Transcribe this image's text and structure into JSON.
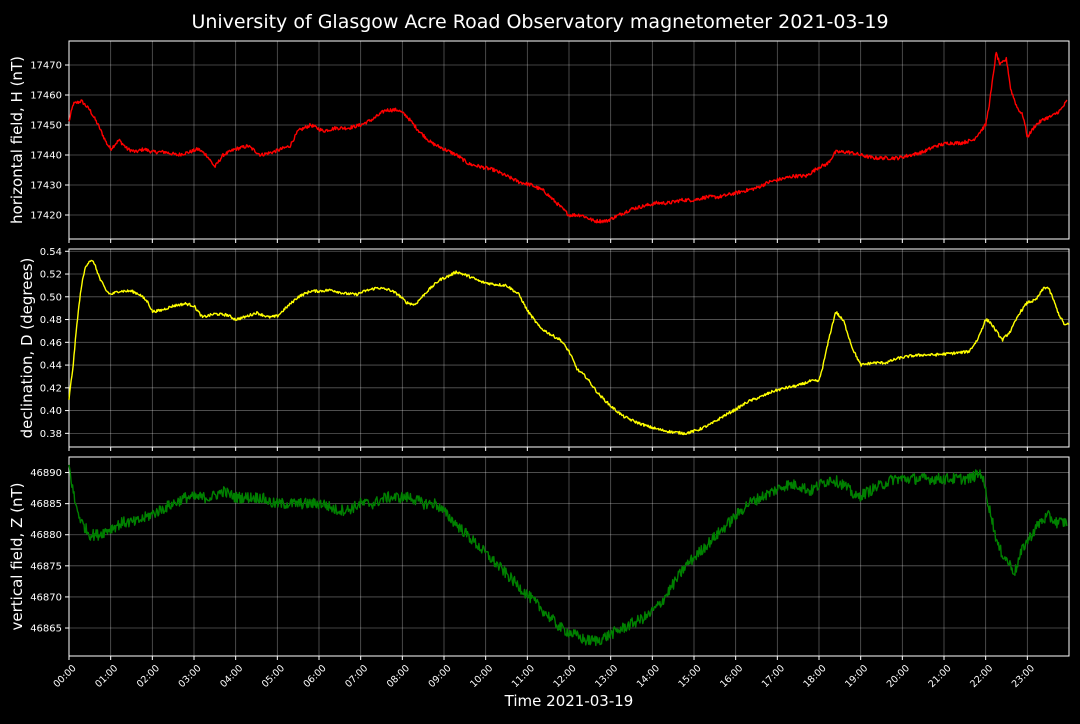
{
  "figure": {
    "title": "University of Glasgow Acre Road Observatory magnetometer 2021-03-19",
    "xlabel": "Time 2021-03-19"
  },
  "chart_data": [
    {
      "type": "line",
      "ylabel": "horizontal field, H (nT)",
      "color": "#ff0000",
      "xlim": [
        0,
        24
      ],
      "ylim": [
        17412,
        17478
      ],
      "yticks": [
        17420,
        17430,
        17440,
        17450,
        17460,
        17470
      ],
      "xticks": [
        "00:00",
        "01:00",
        "02:00",
        "03:00",
        "04:00",
        "05:00",
        "06:00",
        "07:00",
        "08:00",
        "09:00",
        "10:00",
        "11:00",
        "12:00",
        "13:00",
        "14:00",
        "15:00",
        "16:00",
        "17:00",
        "18:00",
        "19:00",
        "20:00",
        "21:00",
        "22:00",
        "23:00"
      ],
      "grid": true,
      "noise": 0.6,
      "series": [
        {
          "x": [
            0,
            0.1,
            0.3,
            0.5,
            0.7,
            0.9,
            1.0,
            1.2,
            1.4,
            1.6,
            1.8,
            2.0,
            2.3,
            2.6,
            2.9,
            3.1,
            3.3,
            3.5,
            3.7,
            4.0,
            4.3,
            4.6,
            4.9,
            5.1,
            5.3,
            5.5,
            5.8,
            6.1,
            6.4,
            6.7,
            7.0,
            7.3,
            7.6,
            7.9,
            8.1,
            8.4,
            8.7,
            9.0,
            9.3,
            9.6,
            9.9,
            10.2,
            10.5,
            10.8,
            11.1,
            11.4,
            11.7,
            12.0,
            12.3,
            12.6,
            12.9,
            13.2,
            13.5,
            13.8,
            14.1,
            14.4,
            14.7,
            15.0,
            15.3,
            15.6,
            15.9,
            16.2,
            16.5,
            16.8,
            17.1,
            17.4,
            17.7,
            18.0,
            18.2,
            18.4,
            18.7,
            19.0,
            19.3,
            19.6,
            19.9,
            20.2,
            20.5,
            20.8,
            21.1,
            21.4,
            21.7,
            22.0,
            22.1,
            22.25,
            22.35,
            22.5,
            22.6,
            22.75,
            22.9,
            23.0,
            23.2,
            23.4,
            23.6,
            23.8,
            23.95
          ],
          "y": [
            17451,
            17457,
            17458,
            17455,
            17450,
            17444,
            17442,
            17445,
            17442,
            17441,
            17442,
            17441,
            17441,
            17440,
            17441,
            17442,
            17440,
            17436,
            17440,
            17442,
            17443,
            17440,
            17441,
            17442,
            17443,
            17448,
            17450,
            17448,
            17449,
            17449,
            17450,
            17452,
            17455,
            17455,
            17453,
            17448,
            17444,
            17442,
            17440,
            17437,
            17436,
            17435,
            17433,
            17431,
            17430,
            17428,
            17424,
            17420,
            17420,
            17418,
            17418,
            17420,
            17422,
            17423,
            17424,
            17424,
            17425,
            17425,
            17426,
            17426,
            17427,
            17428,
            17429,
            17431,
            17432,
            17433,
            17433,
            17436,
            17437,
            17441,
            17441,
            17440,
            17439,
            17439,
            17439,
            17440,
            17441,
            17443,
            17444,
            17444,
            17445,
            17450,
            17458,
            17474,
            17470,
            17472,
            17462,
            17456,
            17453,
            17446,
            17450,
            17452,
            17453,
            17455,
            17458
          ]
        }
      ]
    },
    {
      "type": "line",
      "ylabel": "declination, D (degrees)",
      "color": "#ffff00",
      "xlim": [
        0,
        24
      ],
      "ylim": [
        0.368,
        0.542
      ],
      "yticks": [
        0.38,
        0.4,
        0.42,
        0.44,
        0.46,
        0.48,
        0.5,
        0.52,
        0.54
      ],
      "xticks": [
        "00:00",
        "01:00",
        "02:00",
        "03:00",
        "04:00",
        "05:00",
        "06:00",
        "07:00",
        "08:00",
        "09:00",
        "10:00",
        "11:00",
        "12:00",
        "13:00",
        "14:00",
        "15:00",
        "16:00",
        "17:00",
        "18:00",
        "19:00",
        "20:00",
        "21:00",
        "22:00",
        "23:00"
      ],
      "grid": true,
      "noise": 0.0012,
      "series": [
        {
          "x": [
            0,
            0.1,
            0.2,
            0.3,
            0.4,
            0.5,
            0.6,
            0.75,
            0.9,
            1.0,
            1.2,
            1.5,
            1.7,
            1.9,
            2.0,
            2.2,
            2.5,
            2.8,
            3.0,
            3.2,
            3.5,
            3.8,
            4.0,
            4.2,
            4.5,
            4.8,
            5.0,
            5.2,
            5.5,
            5.8,
            6.0,
            6.3,
            6.6,
            6.9,
            7.1,
            7.4,
            7.7,
            7.9,
            8.1,
            8.3,
            8.6,
            8.9,
            9.1,
            9.3,
            9.6,
            9.9,
            10.2,
            10.5,
            10.8,
            11.0,
            11.3,
            11.6,
            11.8,
            12.0,
            12.2,
            12.4,
            12.7,
            13.0,
            13.3,
            13.6,
            13.9,
            14.2,
            14.5,
            14.8,
            15.1,
            15.4,
            15.7,
            16.0,
            16.3,
            16.6,
            16.9,
            17.2,
            17.5,
            17.8,
            18.0,
            18.1,
            18.25,
            18.4,
            18.6,
            18.8,
            19.0,
            19.3,
            19.6,
            19.9,
            20.2,
            20.5,
            20.8,
            21.1,
            21.4,
            21.6,
            21.8,
            22.0,
            22.1,
            22.25,
            22.4,
            22.6,
            22.8,
            23.0,
            23.2,
            23.4,
            23.5,
            23.6,
            23.75,
            23.9,
            24.0
          ],
          "y": [
            0.41,
            0.44,
            0.48,
            0.51,
            0.527,
            0.532,
            0.53,
            0.515,
            0.505,
            0.502,
            0.505,
            0.505,
            0.502,
            0.495,
            0.487,
            0.488,
            0.492,
            0.494,
            0.492,
            0.482,
            0.485,
            0.484,
            0.48,
            0.482,
            0.486,
            0.482,
            0.483,
            0.49,
            0.5,
            0.505,
            0.505,
            0.506,
            0.503,
            0.502,
            0.505,
            0.508,
            0.506,
            0.502,
            0.495,
            0.493,
            0.505,
            0.515,
            0.518,
            0.522,
            0.518,
            0.513,
            0.511,
            0.51,
            0.502,
            0.488,
            0.473,
            0.466,
            0.462,
            0.452,
            0.436,
            0.43,
            0.415,
            0.404,
            0.395,
            0.39,
            0.386,
            0.383,
            0.381,
            0.38,
            0.383,
            0.388,
            0.395,
            0.401,
            0.408,
            0.412,
            0.417,
            0.42,
            0.422,
            0.426,
            0.426,
            0.44,
            0.465,
            0.487,
            0.478,
            0.455,
            0.44,
            0.442,
            0.442,
            0.446,
            0.448,
            0.449,
            0.449,
            0.45,
            0.451,
            0.452,
            0.462,
            0.48,
            0.478,
            0.47,
            0.462,
            0.47,
            0.485,
            0.495,
            0.497,
            0.508,
            0.508,
            0.5,
            0.485,
            0.475,
            0.476
          ]
        }
      ]
    },
    {
      "type": "line",
      "ylabel": "vertical field, Z (nT)",
      "color": "#008000",
      "xlim": [
        0,
        24
      ],
      "ylim": [
        46860.5,
        46892.5
      ],
      "yticks": [
        46865,
        46870,
        46875,
        46880,
        46885,
        46890
      ],
      "xticks": [
        "00:00",
        "01:00",
        "02:00",
        "03:00",
        "04:00",
        "05:00",
        "06:00",
        "07:00",
        "08:00",
        "09:00",
        "10:00",
        "11:00",
        "12:00",
        "13:00",
        "14:00",
        "15:00",
        "16:00",
        "17:00",
        "18:00",
        "19:00",
        "20:00",
        "21:00",
        "22:00",
        "23:00"
      ],
      "grid": true,
      "noise": 0.9,
      "series": [
        {
          "x": [
            0,
            0.15,
            0.3,
            0.5,
            0.7,
            1.0,
            1.3,
            1.6,
            1.9,
            2.2,
            2.5,
            2.8,
            3.1,
            3.4,
            3.7,
            4.0,
            4.3,
            4.6,
            4.9,
            5.2,
            5.5,
            5.8,
            6.1,
            6.4,
            6.7,
            7.0,
            7.3,
            7.6,
            7.9,
            8.2,
            8.5,
            8.8,
            9.1,
            9.4,
            9.7,
            10.0,
            10.3,
            10.6,
            10.9,
            11.2,
            11.5,
            11.8,
            12.1,
            12.4,
            12.7,
            13.0,
            13.3,
            13.6,
            13.9,
            14.2,
            14.5,
            14.8,
            15.1,
            15.4,
            15.7,
            16.0,
            16.3,
            16.6,
            16.9,
            17.2,
            17.5,
            17.8,
            18.0,
            18.3,
            18.6,
            18.9,
            19.2,
            19.5,
            19.8,
            20.1,
            20.4,
            20.7,
            21.0,
            21.3,
            21.6,
            21.9,
            22.1,
            22.3,
            22.5,
            22.7,
            22.9,
            23.1,
            23.3,
            23.5,
            23.7,
            23.95
          ],
          "y": [
            46891,
            46885,
            46882,
            46880,
            46880,
            46881,
            46882,
            46882,
            46883,
            46884,
            46885,
            46886,
            46886,
            46886,
            46887,
            46886,
            46886,
            46886,
            46885,
            46885,
            46885,
            46885,
            46885,
            46884,
            46884,
            46885,
            46885,
            46886,
            46886,
            46886,
            46885,
            46885,
            46883,
            46881,
            46879,
            46877,
            46875,
            46873,
            46871,
            46869,
            46867,
            46865,
            46864,
            46863,
            46863,
            46864,
            46865,
            46866,
            46867,
            46869,
            46872,
            46875,
            46877,
            46879,
            46881,
            46883,
            46885,
            46886,
            46887,
            46888,
            46888,
            46887,
            46888,
            46889,
            46888,
            46886,
            46887,
            46888,
            46889,
            46889,
            46889,
            46889,
            46889,
            46889,
            46889,
            46890,
            46884,
            46878,
            46876,
            46874,
            46878,
            46880,
            46882,
            46883,
            46882,
            46882
          ]
        }
      ]
    }
  ]
}
